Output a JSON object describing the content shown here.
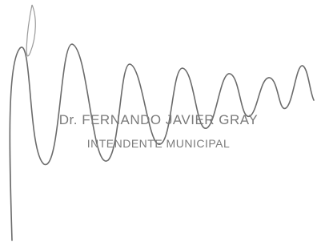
{
  "stamp": {
    "name": "Dr. FERNANDO JAVIER GRAY",
    "position": "INTENDENTE MUNICIPAL"
  }
}
